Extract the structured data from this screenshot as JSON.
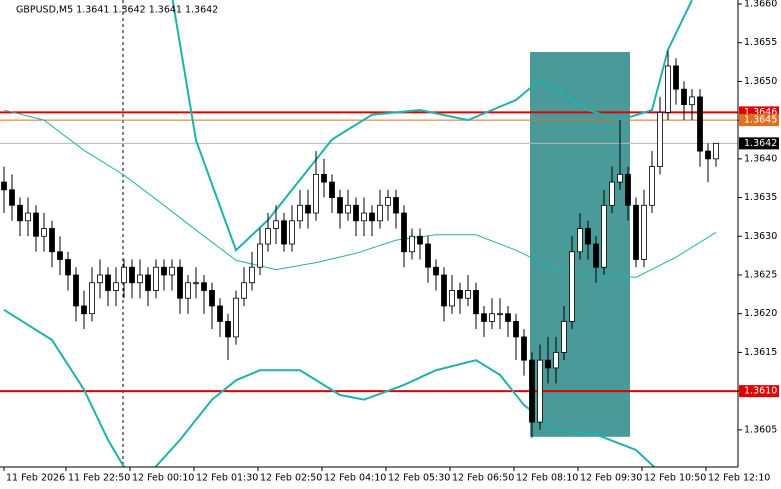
{
  "chart_data": {
    "type": "candlestick",
    "title": "GBPUSD,M5  1.3641 1.3642 1.3641 1.3642",
    "xlim": [
      -0.5,
      91.75
    ],
    "ylim": [
      1.36002,
      1.366
    ],
    "yticks": [
      {
        "value": 1.366,
        "label": "1.3660"
      },
      1.3655,
      {
        "value": 1.365,
        "label": "1.3650"
      },
      1.3645,
      {
        "value": 1.364,
        "label": "1.3640"
      },
      1.3635,
      {
        "value": 1.363,
        "label": "1.3630"
      },
      1.3625,
      {
        "value": 1.362,
        "label": "1.3620"
      },
      1.3615,
      {
        "value": 1.361,
        "label": "1.3610"
      },
      1.3605
    ],
    "xticks": [
      {
        "value": 0,
        "label": "11 Feb 2026"
      },
      {
        "value": 7.75,
        "label": "11 Feb 22:50"
      },
      {
        "value": 15.75,
        "label": "12 Feb 00:10"
      },
      {
        "value": 23.75,
        "label": "12 Feb 01:30"
      },
      {
        "value": 31.75,
        "label": "12 Feb 02:50"
      },
      {
        "value": 39.75,
        "label": "12 Feb 04:10"
      },
      {
        "value": 47.75,
        "label": "12 Feb 05:30"
      },
      {
        "value": 55.75,
        "label": "12 Feb 06:50"
      },
      {
        "value": 63.75,
        "label": "12 Feb 08:10"
      },
      {
        "value": 71.75,
        "label": "12 Feb 09:30"
      },
      {
        "value": 79.75,
        "label": "12 Feb 10:50"
      },
      {
        "value": 87.75,
        "label": "12 Feb 12:10"
      }
    ],
    "open": [
      1.3637,
      1.3636,
      1.3634,
      1.3632,
      1.3633,
      1.363,
      1.3631,
      1.3628,
      1.3627,
      1.3625,
      1.3621,
      1.362,
      1.3624,
      1.3625,
      1.3623,
      1.3624,
      1.3626,
      1.3624,
      1.3625,
      1.3623,
      1.3626,
      1.3625,
      1.3626,
      1.3622,
      1.3624,
      1.3624,
      1.3623,
      1.3621,
      1.3619,
      1.3617,
      1.3622,
      1.3624,
      1.3626,
      1.3629,
      1.3631,
      1.3632,
      1.3629,
      1.3632,
      1.3634,
      1.3633,
      1.3638,
      1.3637,
      1.3635,
      1.3633,
      1.3634,
      1.3632,
      1.3633,
      1.3632,
      1.3634,
      1.3635,
      1.3633,
      1.3628,
      1.363,
      1.3629,
      1.3626,
      1.3625,
      1.3621,
      1.3623,
      1.3622,
      1.3623,
      1.362,
      1.3619,
      1.362,
      1.362,
      1.3619,
      1.3617,
      1.3614,
      1.3606,
      1.3614,
      1.3613,
      1.3615,
      1.3619,
      1.3628,
      1.3631,
      1.3629,
      1.3626,
      1.3634,
      1.3637,
      1.3638,
      1.3634,
      1.3627,
      1.3634,
      1.3639,
      1.3646,
      1.3652,
      1.3649,
      1.3647,
      1.3648,
      1.3641,
      1.364
    ],
    "high": [
      1.3639,
      1.3638,
      1.3635,
      1.3635,
      1.3634,
      1.3633,
      1.3632,
      1.363,
      1.3628,
      1.3626,
      1.3623,
      1.3626,
      1.3627,
      1.3626,
      1.3626,
      1.3627,
      1.3627,
      1.3627,
      1.3626,
      1.3627,
      1.3627,
      1.3627,
      1.3627,
      1.3625,
      1.3626,
      1.3625,
      1.3624,
      1.3622,
      1.362,
      1.3623,
      1.3626,
      1.3628,
      1.3631,
      1.3633,
      1.3634,
      1.3633,
      1.3634,
      1.3636,
      1.3636,
      1.3641,
      1.364,
      1.3638,
      1.3636,
      1.3636,
      1.3635,
      1.3635,
      1.3634,
      1.3636,
      1.3636,
      1.3636,
      1.3634,
      1.3631,
      1.3631,
      1.363,
      1.3627,
      1.3626,
      1.3625,
      1.3624,
      1.3625,
      1.3624,
      1.3621,
      1.3622,
      1.3622,
      1.3621,
      1.362,
      1.3618,
      1.3615,
      1.3616,
      1.3617,
      1.3617,
      1.3621,
      1.363,
      1.3633,
      1.3632,
      1.363,
      1.3636,
      1.3639,
      1.3645,
      1.3639,
      1.3635,
      1.3636,
      1.3641,
      1.3648,
      1.3654,
      1.3653,
      1.365,
      1.3649,
      1.3649,
      1.3642,
      1.3642
    ],
    "low": [
      1.3633,
      1.3632,
      1.363,
      1.363,
      1.3628,
      1.3628,
      1.3626,
      1.3625,
      1.3623,
      1.3619,
      1.3618,
      1.3619,
      1.3622,
      1.3621,
      1.3621,
      1.3622,
      1.3622,
      1.3622,
      1.3621,
      1.3622,
      1.3623,
      1.3623,
      1.362,
      1.362,
      1.3622,
      1.362,
      1.3618,
      1.3617,
      1.3614,
      1.3616,
      1.3621,
      1.3623,
      1.3625,
      1.3628,
      1.3629,
      1.3628,
      1.3628,
      1.3631,
      1.3631,
      1.3632,
      1.3635,
      1.3633,
      1.3631,
      1.3632,
      1.363,
      1.363,
      1.363,
      1.3631,
      1.3632,
      1.3631,
      1.3626,
      1.3627,
      1.3627,
      1.3624,
      1.3623,
      1.3619,
      1.362,
      1.362,
      1.3621,
      1.3618,
      1.3617,
      1.3618,
      1.3618,
      1.3617,
      1.3614,
      1.3612,
      1.3604,
      1.3605,
      1.3611,
      1.3611,
      1.3614,
      1.3618,
      1.3627,
      1.3627,
      1.3624,
      1.3625,
      1.3633,
      1.3636,
      1.3632,
      1.3626,
      1.3626,
      1.3633,
      1.3638,
      1.3645,
      1.3647,
      1.3645,
      1.3645,
      1.3639,
      1.3637,
      1.3639
    ],
    "close": [
      1.3636,
      1.3634,
      1.3632,
      1.3633,
      1.363,
      1.3631,
      1.3628,
      1.3627,
      1.3625,
      1.3621,
      1.362,
      1.3624,
      1.3625,
      1.3623,
      1.3624,
      1.3626,
      1.3624,
      1.3625,
      1.3623,
      1.3626,
      1.3625,
      1.3626,
      1.3622,
      1.3624,
      1.3624,
      1.3623,
      1.3621,
      1.3619,
      1.3617,
      1.3622,
      1.3624,
      1.3626,
      1.3629,
      1.3631,
      1.3632,
      1.3629,
      1.3632,
      1.3634,
      1.3633,
      1.3638,
      1.3637,
      1.3635,
      1.3633,
      1.3634,
      1.3632,
      1.3633,
      1.3632,
      1.3634,
      1.3635,
      1.3633,
      1.3628,
      1.363,
      1.3629,
      1.3626,
      1.3625,
      1.3621,
      1.3623,
      1.3622,
      1.3623,
      1.362,
      1.3619,
      1.362,
      1.362,
      1.3619,
      1.3617,
      1.3614,
      1.3606,
      1.3614,
      1.3613,
      1.3615,
      1.3619,
      1.3628,
      1.3631,
      1.3629,
      1.3626,
      1.3634,
      1.3637,
      1.3638,
      1.3634,
      1.3627,
      1.3634,
      1.3639,
      1.3646,
      1.3652,
      1.3649,
      1.3647,
      1.3648,
      1.3641,
      1.364,
      1.3642
    ],
    "bull_color": "#ffffff",
    "bear_color": "#000000",
    "candle_stroke": "#000000",
    "bands": [
      {
        "color": "#20b2aa",
        "width": 2,
        "x": [
          21,
          24,
          29,
          33,
          37,
          41,
          46,
          52,
          58,
          64,
          67,
          73,
          77,
          81,
          83,
          86
        ],
        "values": [
          1.3661,
          1.36424,
          1.36282,
          1.36321,
          1.36373,
          1.36425,
          1.36457,
          1.36463,
          1.3645,
          1.36476,
          1.36502,
          1.36463,
          1.3645,
          1.36463,
          1.36541,
          1.36605
        ]
      },
      {
        "color": "#20b2aa",
        "width": 1,
        "x": [
          0,
          5,
          10,
          15,
          20,
          24,
          29,
          34,
          39,
          44,
          49,
          54,
          59,
          64,
          69,
          74,
          79,
          84,
          89
        ],
        "values": [
          1.36463,
          1.3645,
          1.36411,
          1.36379,
          1.3634,
          1.36308,
          1.36269,
          1.36257,
          1.36266,
          1.36278,
          1.36295,
          1.36302,
          1.36302,
          1.36282,
          1.36257,
          1.3625,
          1.36247,
          1.36273,
          1.36305
        ]
      },
      {
        "color": "#20b2aa",
        "width": 2,
        "x": [
          0,
          6,
          10,
          13,
          15,
          17,
          22,
          26,
          29,
          32,
          37,
          42,
          45,
          50,
          54,
          59,
          62,
          65,
          69,
          74,
          79,
          82
        ],
        "values": [
          1.36205,
          1.36166,
          1.36102,
          1.36037,
          1.36002,
          1.3598,
          1.36037,
          1.36089,
          1.36114,
          1.36127,
          1.36127,
          1.36095,
          1.36089,
          1.36108,
          1.36127,
          1.3614,
          1.36121,
          1.36082,
          1.3605,
          1.36044,
          1.36024,
          1.35995
        ]
      }
    ],
    "highlight": {
      "x": [
        65.75,
        78.25
      ],
      "y": [
        1.36538,
        1.36041
      ],
      "color": "#4a9a9a"
    },
    "day_separator": 14.875,
    "levels": [
      {
        "value": 1.3646,
        "color": "#e00000",
        "label_bg": "#e00000",
        "width": 2
      },
      {
        "value": 1.3645,
        "color": "#e07020",
        "label_bg": "#e07020",
        "width": 1
      },
      {
        "value": 1.3642,
        "color": "#b8b8b8",
        "label_bg": "#000000",
        "width": 1
      },
      {
        "value": 1.361,
        "label": "1.3610",
        "color": "#e00000",
        "label_bg": "#e00000",
        "width": 2
      }
    ]
  }
}
